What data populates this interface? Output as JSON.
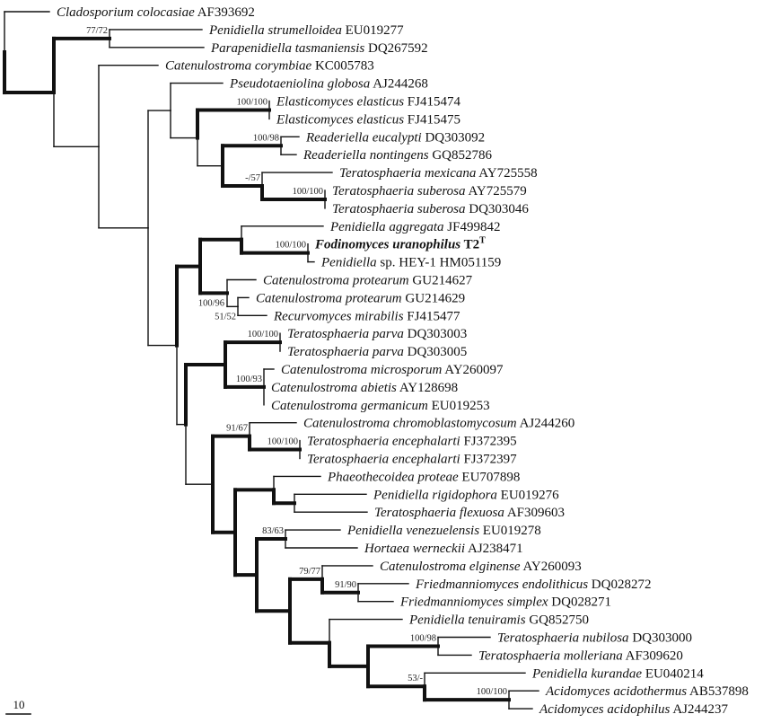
{
  "tree": {
    "leaves": [
      {
        "name": "Cladosporium colocasiae",
        "acc": "AF393692"
      },
      {
        "name": "Penidiella strumelloidea",
        "acc": "EU019277"
      },
      {
        "name": "Parapenidiella tasmaniensis",
        "acc": "DQ267592"
      },
      {
        "name": "Catenulostroma corymbiae",
        "acc": "KC005783"
      },
      {
        "name": "Pseudotaeniolina globosa",
        "acc": "AJ244268"
      },
      {
        "name": "Elasticomyces elasticus",
        "acc": "FJ415474"
      },
      {
        "name": "Elasticomyces elasticus",
        "acc": "FJ415475"
      },
      {
        "name": "Readeriella eucalypti",
        "acc": "DQ303092"
      },
      {
        "name": "Readeriella nontingens",
        "acc": "GQ852786"
      },
      {
        "name": "Teratosphaeria mexicana",
        "acc": "AY725558"
      },
      {
        "name": "Teratosphaeria suberosa",
        "acc": "AY725579"
      },
      {
        "name": "Teratosphaeria suberosa",
        "acc": "DQ303046"
      },
      {
        "name": "Penidiella aggregata",
        "acc": "JF499842"
      },
      {
        "name": "Fodinomyces uranophilus",
        "acc": "T2",
        "sup": "T",
        "highlight": true
      },
      {
        "name": "Penidiella",
        "acc": "sp. HEY-1 HM051159"
      },
      {
        "name": "Catenulostroma protearum",
        "acc": "GU214627"
      },
      {
        "name": "Catenulostroma protearum",
        "acc": "GU214629"
      },
      {
        "name": "Recurvomyces mirabilis",
        "acc": "FJ415477"
      },
      {
        "name": "Teratosphaeria parva",
        "acc": "DQ303003"
      },
      {
        "name": "Teratosphaeria parva",
        "acc": "DQ303005"
      },
      {
        "name": "Catenulostroma microsporum",
        "acc": "AY260097"
      },
      {
        "name": "Catenulostroma abietis",
        "acc": "AY128698"
      },
      {
        "name": "Catenulostroma germanicum",
        "acc": "EU019253"
      },
      {
        "name": "Catenulostroma chromoblastomycosum",
        "acc": "AJ244260"
      },
      {
        "name": "Teratosphaeria encephalarti",
        "acc": "FJ372395"
      },
      {
        "name": "Teratosphaeria encephalarti",
        "acc": "FJ372397"
      },
      {
        "name": "Phaeothecoidea proteae",
        "acc": "EU707898"
      },
      {
        "name": "Penidiella rigidophora",
        "acc": "EU019276"
      },
      {
        "name": "Teratosphaeria flexuosa",
        "acc": "AF309603"
      },
      {
        "name": "Penidiella venezuelensis",
        "acc": "EU019278"
      },
      {
        "name": "Hortaea werneckii",
        "acc": "AJ238471"
      },
      {
        "name": "Catenulostroma elginense",
        "acc": "AY260093"
      },
      {
        "name": "Friedmanniomyces endolithicus",
        "acc": "DQ028272"
      },
      {
        "name": "Friedmanniomyces simplex",
        "acc": "DQ028271"
      },
      {
        "name": "Penidiella tenuiramis",
        "acc": "GQ852750"
      },
      {
        "name": "Teratosphaeria nubilosa",
        "acc": "DQ303000"
      },
      {
        "name": "Teratosphaeria molleriana",
        "acc": "AF309620"
      },
      {
        "name": "Penidiella kurandae",
        "acc": "EU040214"
      },
      {
        "name": "Acidomyces acidothermus",
        "acc": "AB537898"
      },
      {
        "name": "Acidomyces acidophilus",
        "acc": "AJ244237"
      }
    ],
    "support": {
      "n77": "77/72",
      "elast": "100/100",
      "read": "100/98",
      "mex": "-/57",
      "sub": "100/100",
      "fod": "100/100",
      "prot": "100/96",
      "recur": "51/52",
      "parva": "100/100",
      "micro": "100/93",
      "chromo": "91/67",
      "enceph": "100/100",
      "venez": "83/63",
      "elgin": "79/77",
      "fried": "91/90",
      "nubil": "100/98",
      "kur": "53/-",
      "acido": "100/100"
    }
  },
  "scale_bar": {
    "label": "10"
  },
  "colors": {
    "line": "#111111",
    "text": "#111111"
  }
}
